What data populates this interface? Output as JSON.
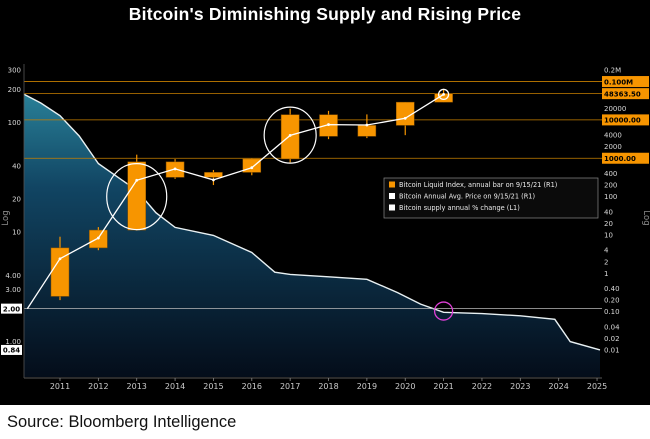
{
  "header": {
    "title": "Bitcoin's Diminishing Supply and Rising Price"
  },
  "footer": {
    "source": "Source: Bloomberg Intelligence"
  },
  "chart_data": {
    "type": "mixed",
    "title": "Bitcoin's Diminishing Supply and Rising Price",
    "x_axis": {
      "years": [
        2011,
        2012,
        2013,
        2014,
        2015,
        2016,
        2017,
        2018,
        2019,
        2020,
        2021,
        2022,
        2023,
        2024,
        2025
      ]
    },
    "axes": {
      "left": {
        "scale": "log",
        "label": "Log",
        "min": 0.84,
        "max": 300,
        "plain": [
          {
            "v": 300,
            "t": "300"
          },
          {
            "v": 200,
            "t": "200"
          },
          {
            "v": 100,
            "t": "100"
          },
          {
            "v": 40,
            "t": "40"
          },
          {
            "v": 20,
            "t": "20"
          },
          {
            "v": 10,
            "t": "10"
          },
          {
            "v": 4,
            "t": "4.00"
          },
          {
            "v": 3,
            "t": "3.00"
          },
          {
            "v": 1,
            "t": "1.00"
          }
        ],
        "badges": [
          {
            "v": 2,
            "t": "2.00",
            "line": true,
            "line_color": "#b9b9b9"
          },
          {
            "v": 0.84,
            "t": "0.84",
            "line": false
          }
        ]
      },
      "right": {
        "scale": "log",
        "label": "Log",
        "min": 0.01,
        "max": 200000,
        "plain": [
          {
            "v": 200000,
            "t": "0.2M"
          },
          {
            "v": 20000,
            "t": "20000"
          },
          {
            "v": 4000,
            "t": "4000"
          },
          {
            "v": 2000,
            "t": "2000"
          },
          {
            "v": 400,
            "t": "400"
          },
          {
            "v": 200,
            "t": "200"
          },
          {
            "v": 100,
            "t": "100"
          },
          {
            "v": 40,
            "t": "40"
          },
          {
            "v": 20,
            "t": "20"
          },
          {
            "v": 10,
            "t": "10"
          },
          {
            "v": 4,
            "t": "4"
          },
          {
            "v": 2,
            "t": "2"
          },
          {
            "v": 1,
            "t": "1"
          },
          {
            "v": 0.4,
            "t": "0.40"
          },
          {
            "v": 0.2,
            "t": "0.20"
          },
          {
            "v": 0.1,
            "t": "0.10"
          },
          {
            "v": 0.04,
            "t": "0.04"
          },
          {
            "v": 0.02,
            "t": "0.02"
          },
          {
            "v": 0.01,
            "t": "0.01"
          }
        ],
        "badges": [
          {
            "v": 100000,
            "t": "0.100M",
            "line": true
          },
          {
            "v": 48363.5,
            "t": "48363.50",
            "line": true
          },
          {
            "v": 10000,
            "t": "10000.00",
            "line": true
          },
          {
            "v": 1000,
            "t": "1000.00",
            "line": true
          }
        ]
      }
    },
    "colors": {
      "bar": "#f79500",
      "price_line": "#ffffff",
      "supply_line": "#e9f1f3",
      "badge": "#f79500",
      "badge_text": "#000000",
      "ref_line": "#c77f00",
      "area_top": "#2f8fa5",
      "area_mid": "#114563",
      "area_bottom": "#040d1a",
      "highlight_circle": "#ffffff",
      "pink_circle": "#e040d8",
      "axis_text": "#d8d8d8",
      "year_text": "#cccccc"
    },
    "series": [
      {
        "name": "Bitcoin Liquid Index, annual bar on 9/15/21 (R1)",
        "type": "candle",
        "axis": "R1",
        "data": [
          {
            "year": 2011,
            "open": 0.25,
            "high": 9,
            "low": 0.2,
            "close": 4.6
          },
          {
            "year": 2012,
            "open": 4.6,
            "high": 16,
            "low": 4,
            "close": 13.4
          },
          {
            "year": 2013,
            "open": 13.4,
            "high": 1240,
            "low": 13,
            "close": 805
          },
          {
            "year": 2014,
            "open": 805,
            "high": 950,
            "low": 290,
            "close": 318
          },
          {
            "year": 2015,
            "open": 318,
            "high": 495,
            "low": 200,
            "close": 428
          },
          {
            "year": 2016,
            "open": 428,
            "high": 985,
            "low": 360,
            "close": 960
          },
          {
            "year": 2017,
            "open": 960,
            "high": 19600,
            "low": 780,
            "close": 13660
          },
          {
            "year": 2018,
            "open": 13660,
            "high": 17200,
            "low": 3150,
            "close": 3730
          },
          {
            "year": 2019,
            "open": 3730,
            "high": 13900,
            "low": 3350,
            "close": 7200
          },
          {
            "year": 2020,
            "open": 7200,
            "high": 29300,
            "low": 4000,
            "close": 28990
          },
          {
            "year": 2021,
            "open": 28990,
            "high": 64800,
            "low": 28800,
            "close": 48363.5
          }
        ]
      },
      {
        "name": "Bitcoin Annual Avg. Price on 9/15/21 (R1)",
        "type": "line",
        "axis": "R1",
        "data": [
          [
            2010.15,
            0.12
          ],
          [
            2011,
            2.4
          ],
          [
            2012,
            8.3
          ],
          [
            2013,
            266
          ],
          [
            2014,
            527
          ],
          [
            2015,
            272
          ],
          [
            2016,
            567
          ],
          [
            2017,
            3950
          ],
          [
            2018,
            7550
          ],
          [
            2019,
            7350
          ],
          [
            2020,
            11000
          ],
          [
            2021,
            46200
          ]
        ]
      },
      {
        "name": "Bitcoin supply annual % change  (L1)",
        "type": "area",
        "axis": "L1",
        "data": [
          [
            2010.06,
            180
          ],
          [
            2010.5,
            150
          ],
          [
            2011,
            115
          ],
          [
            2011.5,
            75
          ],
          [
            2012,
            42
          ],
          [
            2012.6,
            30
          ],
          [
            2013,
            24
          ],
          [
            2013.5,
            15
          ],
          [
            2014,
            11
          ],
          [
            2015,
            9.3
          ],
          [
            2016,
            6.5
          ],
          [
            2016.6,
            4.3
          ],
          [
            2017,
            4.1
          ],
          [
            2018,
            3.9
          ],
          [
            2019,
            3.7
          ],
          [
            2019.8,
            2.8
          ],
          [
            2020.4,
            2.2
          ],
          [
            2021,
            1.85
          ],
          [
            2022,
            1.8
          ],
          [
            2023,
            1.72
          ],
          [
            2023.9,
            1.6
          ],
          [
            2024.3,
            1.0
          ],
          [
            2025.08,
            0.84
          ]
        ]
      }
    ],
    "legend": {
      "items": [
        {
          "swatch": "#f79500",
          "label": "Bitcoin Liquid Index, annual bar on 9/15/21 (R1)"
        },
        {
          "swatch": "#ffffff",
          "label": "Bitcoin Annual Avg. Price on 9/15/21 (R1)"
        },
        {
          "swatch": "#ffffff",
          "label": "Bitcoin supply annual % change  (L1)"
        }
      ]
    },
    "annotations": [
      {
        "type": "ellipse",
        "year": 2013,
        "axis": "R1",
        "value": 100,
        "rx": 30,
        "ry": 33,
        "color": "#ffffff"
      },
      {
        "type": "ellipse",
        "year": 2017,
        "axis": "R1",
        "value": 4000,
        "rx": 26,
        "ry": 28,
        "color": "#ffffff"
      },
      {
        "type": "circle",
        "year": 2021,
        "axis": "L1",
        "value": 1.9,
        "r": 9,
        "color": "#e040d8"
      },
      {
        "type": "circle",
        "year": 2021,
        "axis": "R1",
        "value": 46200,
        "r": 5,
        "color": "#ffffff"
      }
    ],
    "last_values": {
      "price": "48363.50",
      "supply_pct_change": "0.84"
    }
  }
}
